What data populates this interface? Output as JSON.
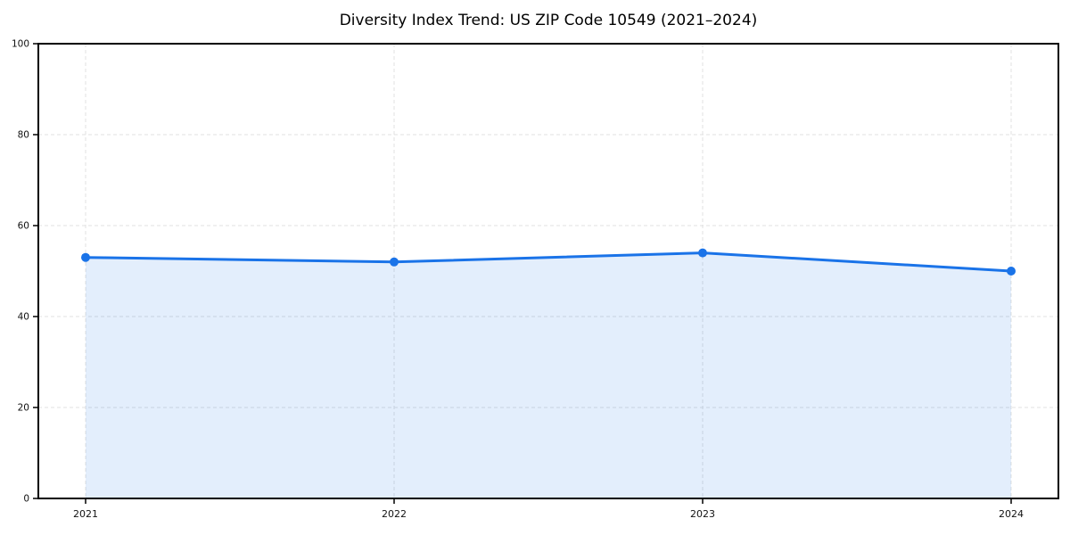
{
  "chart_data": {
    "type": "line",
    "title": "Diversity Index Trend: US ZIP Code 10549 (2021–2024)",
    "x": [
      "2021",
      "2022",
      "2023",
      "2024"
    ],
    "series": [
      {
        "name": "Diversity Index",
        "values": [
          53,
          52,
          54,
          50
        ]
      }
    ],
    "xlabel": "",
    "ylabel": "",
    "ylim": [
      0,
      100
    ],
    "yticks": [
      0,
      20,
      40,
      60,
      80,
      100
    ],
    "grid": true,
    "grid_style": "dashed",
    "legend": "none",
    "area_fill": true,
    "fill_opacity": 0.12,
    "line_width": 3,
    "marker_radius": 5,
    "colors": {
      "line": "#1a73e8",
      "marker": "#1a73e8",
      "fill": "#1a73e8",
      "grid": "#e0e0e0",
      "axis": "#000000",
      "text": "#111111",
      "background": "#ffffff"
    }
  }
}
